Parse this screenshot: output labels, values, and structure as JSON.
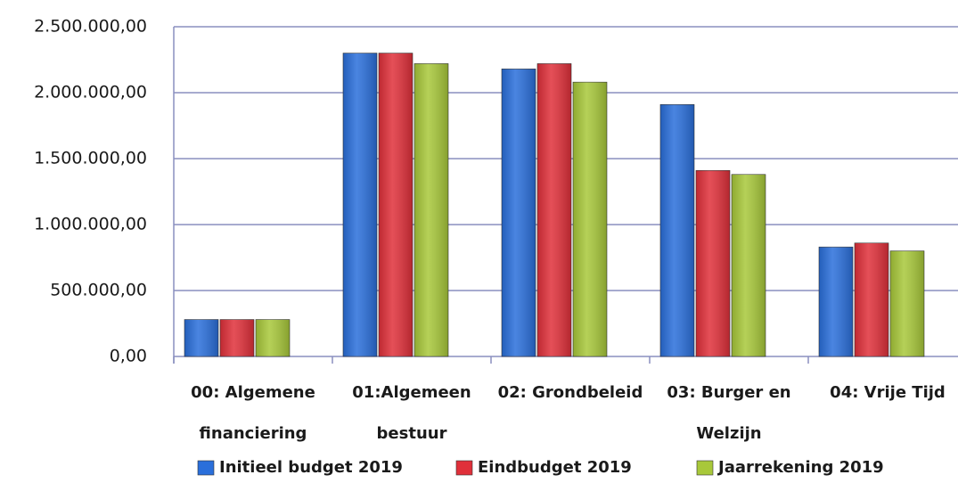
{
  "chart_data": {
    "type": "bar",
    "categories": [
      [
        "00: Algemene",
        "financiering"
      ],
      [
        "01:Algemeen",
        "bestuur"
      ],
      [
        "02: Grondbeleid"
      ],
      [
        "03: Burger en",
        "Welzijn"
      ],
      [
        "04: Vrije Tijd"
      ]
    ],
    "series": [
      {
        "name": "Initieel budget 2019",
        "color": "#2a6fdb",
        "values": [
          280000,
          2300000,
          2180000,
          1910000,
          830000
        ]
      },
      {
        "name": "Eindbudget 2019",
        "color": "#e0303a",
        "values": [
          280000,
          2300000,
          2220000,
          1410000,
          860000
        ]
      },
      {
        "name": "Jaarrekening 2019",
        "color": "#a8c83a",
        "values": [
          280000,
          2220000,
          2080000,
          1380000,
          800000
        ]
      }
    ],
    "ylim": [
      0,
      2500000
    ],
    "yticks": [
      {
        "value": 0,
        "label": "0,00"
      },
      {
        "value": 500000,
        "label": "500.000,00"
      },
      {
        "value": 1000000,
        "label": "1.000.000,00"
      },
      {
        "value": 1500000,
        "label": "1.500.000,00"
      },
      {
        "value": 2000000,
        "label": "2.000.000,00"
      },
      {
        "value": 2500000,
        "label": "2.500.000,00"
      }
    ],
    "grid": true,
    "legend": "bottom"
  }
}
